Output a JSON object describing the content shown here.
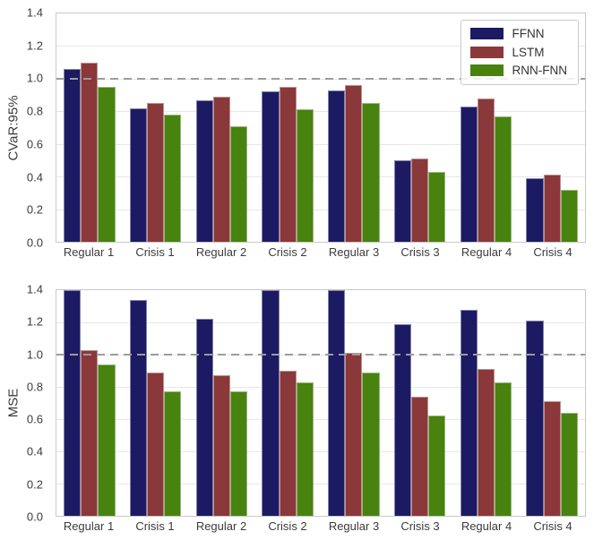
{
  "figure": {
    "background": "#ffffff",
    "text_color": "#3b3b3b"
  },
  "chart_data": [
    {
      "type": "bar",
      "ylabel": "CVaR:95%",
      "xlabel": "",
      "ylim": [
        0,
        1.4
      ],
      "yticks": [
        "0.0",
        "0.2",
        "0.4",
        "0.6",
        "0.8",
        "1.0",
        "1.2",
        "1.4"
      ],
      "grid_values": [
        0.2,
        0.4,
        0.6,
        0.8,
        1.0,
        1.2
      ],
      "grid": "on",
      "reference_line": 1.0,
      "reference_line_style": "dashed",
      "reference_line_color": "#9c9c9c",
      "categories": [
        "Regular 1",
        "Crisis 1",
        "Regular 2",
        "Crisis 2",
        "Regular 3",
        "Crisis 3",
        "Regular 4",
        "Crisis 4"
      ],
      "series": [
        {
          "name": "FFNN",
          "color": "#1c1a63",
          "values": [
            1.06,
            0.82,
            0.87,
            0.92,
            0.93,
            0.5,
            0.83,
            0.39
          ]
        },
        {
          "name": "LSTM",
          "color": "#8a3839",
          "values": [
            1.1,
            0.85,
            0.89,
            0.95,
            0.96,
            0.51,
            0.88,
            0.41
          ]
        },
        {
          "name": "RNN-FNN",
          "color": "#48820f",
          "values": [
            0.95,
            0.78,
            0.71,
            0.81,
            0.85,
            0.43,
            0.77,
            0.32
          ]
        }
      ],
      "legend": {
        "show": true,
        "position": "upper right",
        "entries": [
          "FFNN",
          "LSTM",
          "RNN-FNN"
        ]
      }
    },
    {
      "type": "bar",
      "ylabel": "MSE",
      "xlabel": "",
      "ylim": [
        0,
        1.4
      ],
      "yticks": [
        "0.0",
        "0.2",
        "0.4",
        "0.6",
        "0.8",
        "1.0",
        "1.2",
        "1.4"
      ],
      "grid_values": [
        0.2,
        0.4,
        0.6,
        0.8,
        1.0,
        1.2
      ],
      "grid": "on",
      "reference_line": 1.0,
      "reference_line_style": "dashed",
      "reference_line_color": "#9c9c9c",
      "categories": [
        "Regular 1",
        "Crisis 1",
        "Regular 2",
        "Crisis 2",
        "Regular 3",
        "Crisis 3",
        "Regular 4",
        "Crisis 4"
      ],
      "series": [
        {
          "name": "FFNN",
          "color": "#1c1a63",
          "values": [
            1.4,
            1.34,
            1.22,
            1.4,
            1.4,
            1.19,
            1.28,
            1.21
          ]
        },
        {
          "name": "LSTM",
          "color": "#8a3839",
          "values": [
            1.03,
            0.89,
            0.87,
            0.9,
            1.01,
            0.74,
            0.91,
            0.71
          ]
        },
        {
          "name": "RNN-FNN",
          "color": "#48820f",
          "values": [
            0.94,
            0.77,
            0.77,
            0.83,
            0.89,
            0.62,
            0.83,
            0.64
          ]
        }
      ],
      "legend": {
        "show": false,
        "position": "",
        "entries": []
      }
    }
  ]
}
